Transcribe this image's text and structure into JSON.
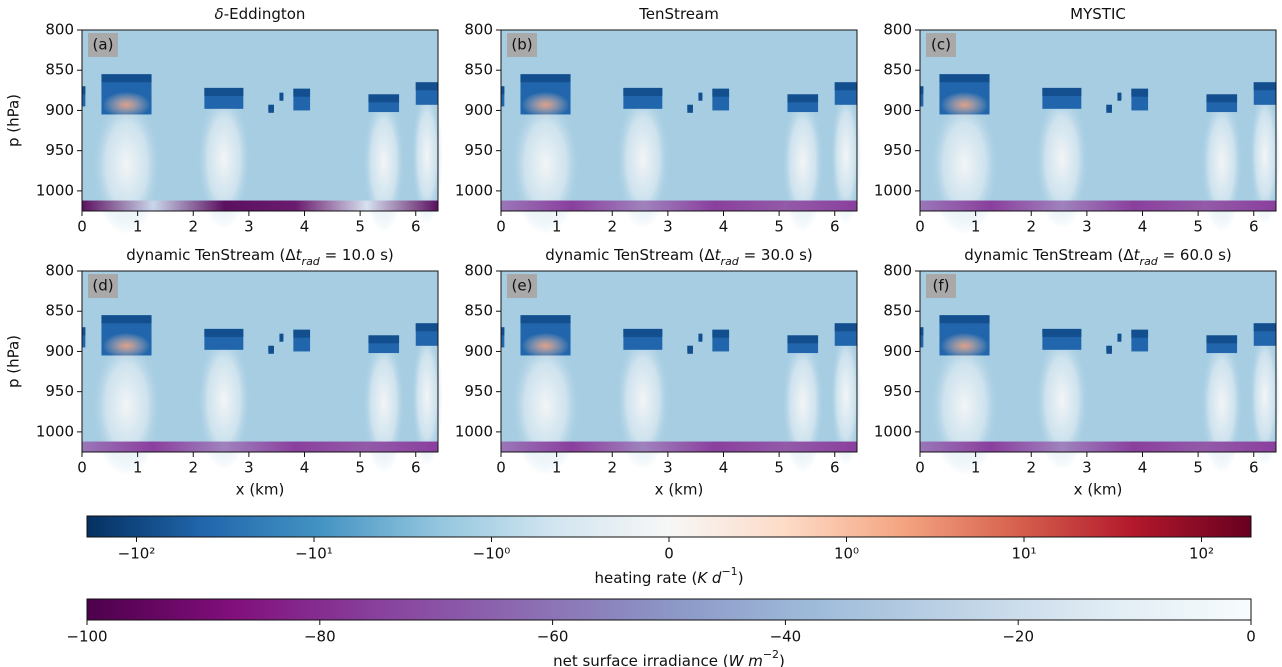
{
  "chart_data": [
    {
      "type": "heatmap",
      "title": [
        {
          "text": "δ",
          "style": "italic"
        },
        {
          "text": "-Eddington"
        }
      ],
      "panel_label": "(a)",
      "ylabel": "p (hPa)",
      "xlim": [
        0,
        6.4
      ],
      "ylim": [
        1025,
        800
      ],
      "xticks": [
        0,
        1,
        2,
        3,
        4,
        5,
        6
      ],
      "yticks": [
        800,
        850,
        900,
        950,
        1000
      ]
    },
    {
      "type": "heatmap",
      "title": [
        {
          "text": "TenStream"
        }
      ],
      "panel_label": "(b)",
      "xlim": [
        0,
        6.4
      ],
      "ylim": [
        1025,
        800
      ],
      "xticks": [
        0,
        1,
        2,
        3,
        4,
        5,
        6
      ],
      "yticks": [
        800,
        850,
        900,
        950,
        1000
      ]
    },
    {
      "type": "heatmap",
      "title": [
        {
          "text": "MYSTIC"
        }
      ],
      "panel_label": "(c)",
      "xlim": [
        0,
        6.4
      ],
      "ylim": [
        1025,
        800
      ],
      "xticks": [
        0,
        1,
        2,
        3,
        4,
        5,
        6
      ],
      "yticks": [
        800,
        850,
        900,
        950,
        1000
      ]
    },
    {
      "type": "heatmap",
      "title": [
        {
          "text": "dynamic TenStream (Δ"
        },
        {
          "text": "t",
          "style": "italic"
        },
        {
          "text": "rad",
          "style": "sub"
        },
        {
          "text": " = 10.0 s)"
        }
      ],
      "panel_label": "(d)",
      "ylabel": "p (hPa)",
      "xlabel": "x (km)",
      "xlim": [
        0,
        6.4
      ],
      "ylim": [
        1025,
        800
      ],
      "xticks": [
        0,
        1,
        2,
        3,
        4,
        5,
        6
      ],
      "yticks": [
        800,
        850,
        900,
        950,
        1000
      ]
    },
    {
      "type": "heatmap",
      "title": [
        {
          "text": "dynamic TenStream (Δ"
        },
        {
          "text": "t",
          "style": "italic"
        },
        {
          "text": "rad",
          "style": "sub"
        },
        {
          "text": " = 30.0 s)"
        }
      ],
      "panel_label": "(e)",
      "xlabel": "x (km)",
      "xlim": [
        0,
        6.4
      ],
      "ylim": [
        1025,
        800
      ],
      "xticks": [
        0,
        1,
        2,
        3,
        4,
        5,
        6
      ],
      "yticks": [
        800,
        850,
        900,
        950,
        1000
      ]
    },
    {
      "type": "heatmap",
      "title": [
        {
          "text": "dynamic TenStream (Δ"
        },
        {
          "text": "t",
          "style": "italic"
        },
        {
          "text": "rad",
          "style": "sub"
        },
        {
          "text": " = 60.0 s)"
        }
      ],
      "panel_label": "(f)",
      "xlabel": "x (km)",
      "xlim": [
        0,
        6.4
      ],
      "ylim": [
        1025,
        800
      ],
      "xticks": [
        0,
        1,
        2,
        3,
        4,
        5,
        6
      ],
      "yticks": [
        800,
        850,
        900,
        950,
        1000
      ]
    },
    {
      "type": "colorbar",
      "scale": "symlog",
      "linthresh": 1,
      "xlim": [
        -190,
        190
      ],
      "label": [
        {
          "text": "heating rate ("
        },
        {
          "text": "K d",
          "style": "italic"
        },
        {
          "text": "−1",
          "style": "sup"
        },
        {
          "text": ")"
        }
      ],
      "colors": [
        "#053061",
        "#2166ac",
        "#4393c3",
        "#92c5de",
        "#d1e5f0",
        "#f7f7f7",
        "#fddbc7",
        "#f4a582",
        "#d6604d",
        "#b2182b",
        "#67001f"
      ],
      "xticks": [
        {
          "value": -100,
          "label": "−10²"
        },
        {
          "value": -10,
          "label": "−10¹"
        },
        {
          "value": -1,
          "label": "−10⁰"
        },
        0,
        {
          "value": 1,
          "label": "10⁰"
        },
        {
          "value": 10,
          "label": "10¹"
        },
        {
          "value": 100,
          "label": "10²"
        }
      ]
    },
    {
      "type": "colorbar",
      "scale": "linear",
      "xlim": [
        -100,
        0
      ],
      "label": [
        {
          "text": "net surface irradiance ("
        },
        {
          "text": "W m",
          "style": "italic"
        },
        {
          "text": "−2",
          "style": "sup"
        },
        {
          "text": ")"
        }
      ],
      "colors": [
        "#4d004b",
        "#810f7c",
        "#88419d",
        "#8c6bb1",
        "#8c96c6",
        "#9ebcda",
        "#bfd3e6",
        "#e0ecf4",
        "#f7fcfd"
      ],
      "xticks": [
        {
          "value": -100,
          "label": "−100"
        },
        {
          "value": -80,
          "label": "−80"
        },
        {
          "value": -60,
          "label": "−60"
        },
        {
          "value": -40,
          "label": "−40"
        },
        {
          "value": -20,
          "label": "−20"
        },
        0
      ]
    }
  ]
}
